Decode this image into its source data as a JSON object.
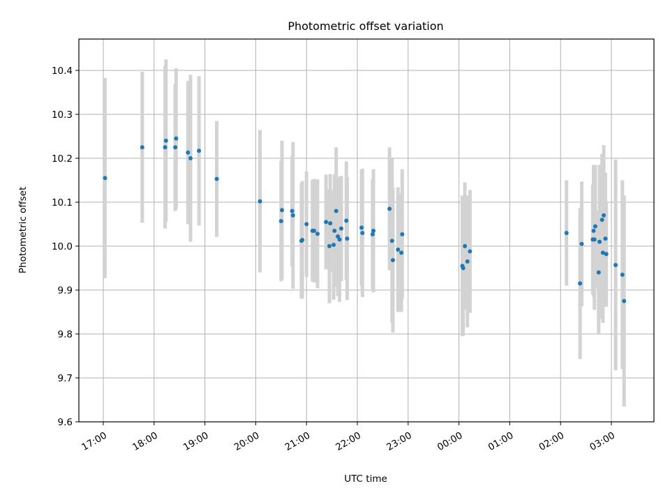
{
  "chart_data": {
    "type": "scatter",
    "title": "Photometric offset variation",
    "xlabel": "UTC time",
    "ylabel": "Photometric offset",
    "x_unit": "hours",
    "x_ticks": [
      "17:00",
      "18:00",
      "19:00",
      "20:00",
      "21:00",
      "22:00",
      "23:00",
      "00:00",
      "01:00",
      "02:00",
      "03:00"
    ],
    "y_ticks": [
      "9.6",
      "9.7",
      "9.8",
      "9.9",
      "10.0",
      "10.1",
      "10.2",
      "10.3",
      "10.4"
    ],
    "ylim": [
      9.6,
      10.47
    ],
    "grid": true,
    "colors": {
      "point": "#1f77b4",
      "errorbar": "#d3d3d3",
      "grid": "#b0b0b0"
    },
    "series": [
      {
        "x": [
          "17:02",
          "17:46",
          "18:13",
          "18:14",
          "18:25",
          "18:26",
          "18:40",
          "18:43",
          "18:53",
          "19:14",
          "20:05",
          "20:30",
          "20:31",
          "20:43",
          "20:44",
          "20:54",
          "20:55",
          "21:00",
          "21:07",
          "21:09",
          "21:13",
          "21:23",
          "21:27",
          "21:28",
          "21:32",
          "21:33",
          "21:35",
          "21:37",
          "21:39",
          "21:41",
          "21:47",
          "21:48",
          "22:05",
          "22:06",
          "22:18",
          "22:19",
          "22:38",
          "22:41",
          "22:42",
          "22:48",
          "22:52",
          "22:53",
          "00:04",
          "00:05",
          "00:07",
          "00:10",
          "00:13",
          "02:07",
          "02:23",
          "02:25",
          "02:38",
          "02:39",
          "02:40",
          "02:41",
          "02:45",
          "02:46",
          "02:49",
          "02:50",
          "02:51",
          "02:53",
          "02:54",
          "03:05",
          "03:13",
          "03:15"
        ],
        "y": [
          10.155,
          10.225,
          10.225,
          10.24,
          10.225,
          10.245,
          10.213,
          10.2,
          10.217,
          10.153,
          10.102,
          10.057,
          10.082,
          10.08,
          10.07,
          10.012,
          10.014,
          10.05,
          10.035,
          10.035,
          10.028,
          10.055,
          10.0,
          10.052,
          10.003,
          10.035,
          10.08,
          10.022,
          10.015,
          10.04,
          10.058,
          10.017,
          10.042,
          10.03,
          10.027,
          10.035,
          10.085,
          10.012,
          9.968,
          9.992,
          9.985,
          10.027,
          9.955,
          9.95,
          10.0,
          9.965,
          9.988,
          10.03,
          9.915,
          10.005,
          10.015,
          10.035,
          10.015,
          10.045,
          9.94,
          10.01,
          10.06,
          9.985,
          10.07,
          10.017,
          9.982,
          9.957,
          9.935,
          9.875
        ],
        "err": [
          0.228,
          0.172,
          0.185,
          0.185,
          0.145,
          0.16,
          0.163,
          0.19,
          0.17,
          0.132,
          0.162,
          0.137,
          0.158,
          0.126,
          0.167,
          0.131,
          0.134,
          0.12,
          0.116,
          0.118,
          0.124,
          0.108,
          0.13,
          0.112,
          0.125,
          0.128,
          0.145,
          0.136,
          0.142,
          0.12,
          0.135,
          0.14,
          0.132,
          0.146,
          0.125,
          0.14,
          0.14,
          0.187,
          0.165,
          0.142,
          0.135,
          0.148,
          0.16,
          0.155,
          0.145,
          0.15,
          0.14,
          0.12,
          0.172,
          0.142,
          0.125,
          0.15,
          0.16,
          0.14,
          0.14,
          0.175,
          0.15,
          0.16,
          0.16,
          0.15,
          0.12,
          0.24,
          0.215,
          0.24
        ]
      }
    ]
  }
}
